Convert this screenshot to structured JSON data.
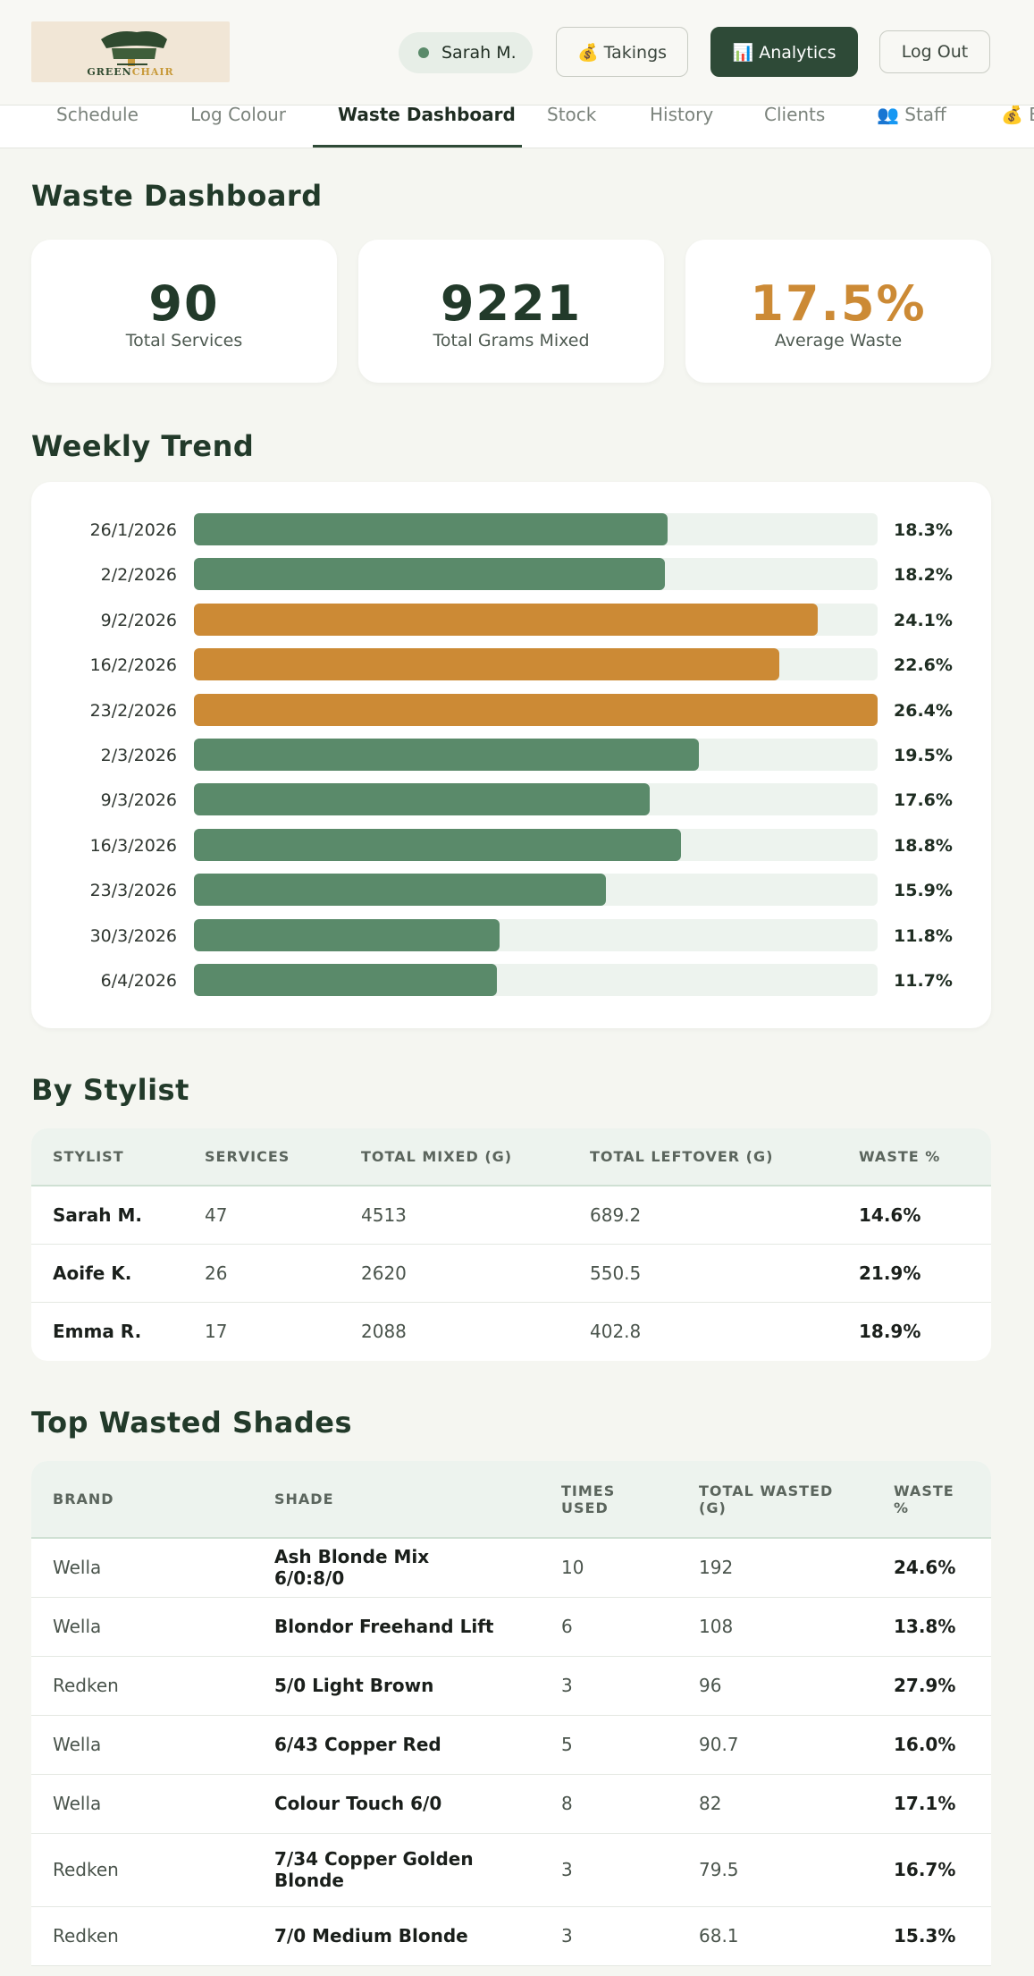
{
  "header": {
    "logo_text_a": "GREEN",
    "logo_text_b": "CHAIR",
    "user_name": "Sarah M.",
    "takings_label": "💰 Takings",
    "analytics_label": "📊 Analytics",
    "logout_label": "Log Out"
  },
  "nav": {
    "items": [
      "Schedule",
      "Log Colour",
      "Waste Dashboard",
      "Stock",
      "History",
      "Clients",
      "👥 Staff",
      "💰 B"
    ],
    "active_index": 2
  },
  "page_title": "Waste Dashboard",
  "stats": [
    {
      "value": "90",
      "label": "Total Services",
      "color": "#223a2a"
    },
    {
      "value": "9221",
      "label": "Total Grams Mixed",
      "color": "#223a2a"
    },
    {
      "value": "17.5%",
      "label": "Average Waste",
      "color": "#cc8a35"
    }
  ],
  "weekly_trend": {
    "title": "Weekly Trend",
    "colors": {
      "normal": "#5a8a6a",
      "high": "#cc8a35"
    },
    "rows": [
      {
        "date": "26/1/2026",
        "pct": "18.3%",
        "value": 18.3,
        "high": false
      },
      {
        "date": "2/2/2026",
        "pct": "18.2%",
        "value": 18.2,
        "high": false
      },
      {
        "date": "9/2/2026",
        "pct": "24.1%",
        "value": 24.1,
        "high": true
      },
      {
        "date": "16/2/2026",
        "pct": "22.6%",
        "value": 22.6,
        "high": true
      },
      {
        "date": "23/2/2026",
        "pct": "26.4%",
        "value": 26.4,
        "high": true
      },
      {
        "date": "2/3/2026",
        "pct": "19.5%",
        "value": 19.5,
        "high": false
      },
      {
        "date": "9/3/2026",
        "pct": "17.6%",
        "value": 17.6,
        "high": false
      },
      {
        "date": "16/3/2026",
        "pct": "18.8%",
        "value": 18.8,
        "high": false
      },
      {
        "date": "23/3/2026",
        "pct": "15.9%",
        "value": 15.9,
        "high": false
      },
      {
        "date": "30/3/2026",
        "pct": "11.8%",
        "value": 11.8,
        "high": false
      },
      {
        "date": "6/4/2026",
        "pct": "11.7%",
        "value": 11.7,
        "high": false
      }
    ]
  },
  "chart_data": {
    "type": "bar",
    "categories": [
      "26/1/2026",
      "2/2/2026",
      "9/2/2026",
      "16/2/2026",
      "23/2/2026",
      "2/3/2026",
      "9/3/2026",
      "16/3/2026",
      "23/3/2026",
      "30/3/2026",
      "6/4/2026"
    ],
    "values": [
      18.3,
      18.2,
      24.1,
      22.6,
      26.4,
      19.5,
      17.6,
      18.8,
      15.9,
      11.8,
      11.7
    ],
    "title": "Weekly Trend",
    "orientation": "horizontal"
  },
  "by_stylist": {
    "title": "By Stylist",
    "columns": [
      "STYLIST",
      "SERVICES",
      "TOTAL MIXED (G)",
      "TOTAL LEFTOVER (G)",
      "WASTE %"
    ],
    "rows": [
      [
        "Sarah M.",
        "47",
        "4513",
        "689.2",
        "14.6%"
      ],
      [
        "Aoife K.",
        "26",
        "2620",
        "550.5",
        "21.9%"
      ],
      [
        "Emma R.",
        "17",
        "2088",
        "402.8",
        "18.9%"
      ]
    ]
  },
  "top_shades": {
    "title": "Top Wasted Shades",
    "columns": [
      "BRAND",
      "SHADE",
      "TIMES USED",
      "TOTAL WASTED (G)",
      "WASTE %"
    ],
    "rows": [
      [
        "Wella",
        "Ash Blonde Mix 6/0:8/0",
        "10",
        "192",
        "24.6%"
      ],
      [
        "Wella",
        "Blondor Freehand Lift",
        "6",
        "108",
        "13.8%"
      ],
      [
        "Redken",
        "5/0 Light Brown",
        "3",
        "96",
        "27.9%"
      ],
      [
        "Wella",
        "6/43 Copper Red",
        "5",
        "90.7",
        "16.0%"
      ],
      [
        "Wella",
        "Colour Touch 6/0",
        "8",
        "82",
        "17.1%"
      ],
      [
        "Redken",
        "7/34 Copper Golden Blonde",
        "3",
        "79.5",
        "16.7%"
      ],
      [
        "Redken",
        "7/0 Medium Blonde",
        "3",
        "68.1",
        "15.3%"
      ]
    ]
  }
}
